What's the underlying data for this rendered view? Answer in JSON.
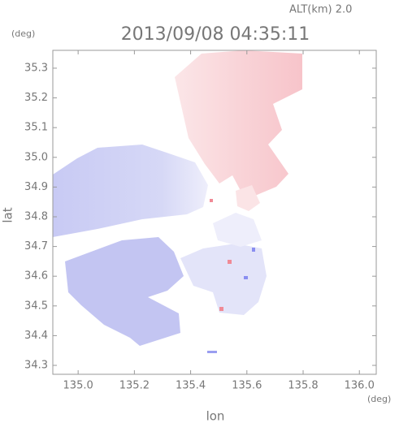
{
  "chart_data": {
    "type": "map",
    "title": "2013/09/08 04:35:11",
    "subtitle": "ALT(km) 2.0",
    "x_label": "lon",
    "y_label": "lat",
    "x_unit": "(deg)",
    "y_unit": "(deg)",
    "xlim": [
      134.91,
      136.06
    ],
    "xticks": [
      {
        "value": 135,
        "label": "135.0"
      },
      135.2,
      135.4,
      135.6,
      135.8,
      {
        "value": 136,
        "label": "136.0"
      }
    ],
    "ylim": [
      34.27,
      35.36
    ],
    "yticks": [
      34.3,
      34.4,
      34.5,
      34.6,
      34.7,
      34.8,
      34.9,
      {
        "value": 35,
        "label": "35.0"
      },
      35.1,
      35.2,
      35.3
    ]
  }
}
